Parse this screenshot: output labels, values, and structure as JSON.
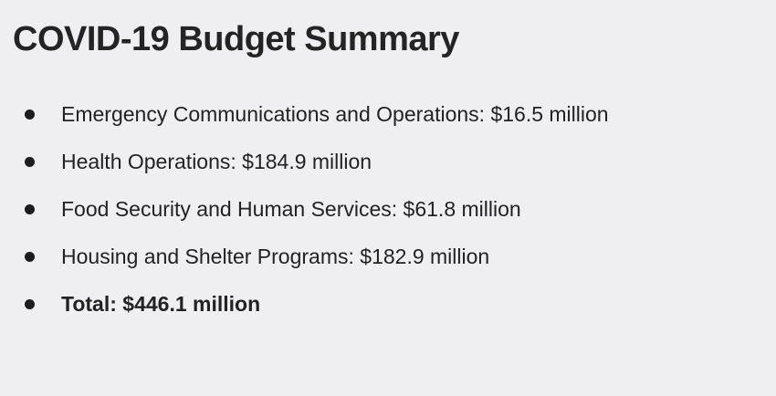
{
  "slide": {
    "title": "COVID-19 Budget Summary",
    "bullets": [
      {
        "text": "Emergency Communications and Operations: $16.5 million"
      },
      {
        "text": "Health Operations: $184.9 million"
      },
      {
        "text": "Food Security and Human Services: $61.8 million"
      },
      {
        "text": "Housing and Shelter Programs: $182.9 million"
      },
      {
        "text": "Total: $446.1 million"
      }
    ]
  }
}
